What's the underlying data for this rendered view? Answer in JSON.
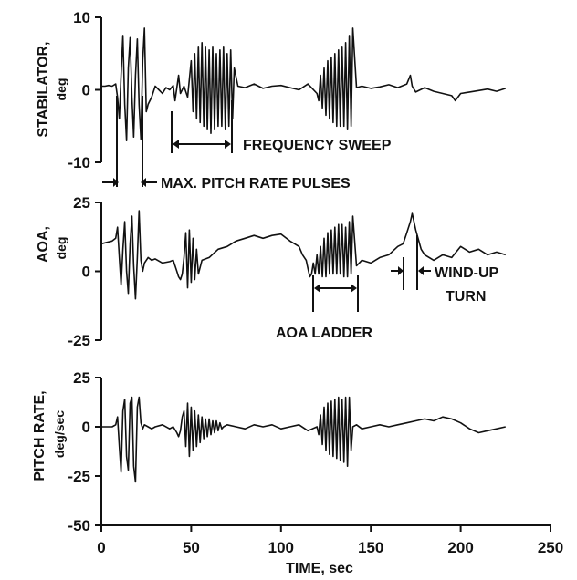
{
  "chart_data": {
    "type": "line",
    "xlabel": "TIME, sec",
    "xlim": [
      0,
      250
    ],
    "xticks": [
      "0",
      "50",
      "100",
      "150",
      "200",
      "250"
    ],
    "panels": [
      {
        "ylabel_line1": "STABILATOR,",
        "ylabel_line2": "deg",
        "ylim": [
          -10,
          10
        ],
        "yticks": [
          "10",
          "0",
          "-10"
        ],
        "series": [
          {
            "x": [
              0,
              2,
              4,
              6,
              8,
              9,
              10,
              11,
              12,
              13,
              14,
              15,
              16,
              17,
              18,
              19,
              20,
              21,
              22,
              23,
              24,
              25,
              26,
              28,
              30,
              32,
              34,
              36,
              38,
              40,
              41,
              42,
              43,
              44,
              46,
              48,
              50,
              51,
              52,
              53,
              54,
              55,
              56,
              57,
              58,
              59,
              60,
              61,
              62,
              63,
              64,
              65,
              66,
              67,
              68,
              69,
              70,
              71,
              72,
              73,
              74,
              76,
              80,
              85,
              90,
              95,
              100,
              105,
              110,
              115,
              120,
              121,
              122,
              123,
              124,
              125,
              126,
              127,
              128,
              129,
              130,
              131,
              132,
              133,
              134,
              135,
              136,
              137,
              138,
              139,
              140,
              142,
              145,
              150,
              155,
              160,
              165,
              170,
              172,
              173,
              175,
              180,
              185,
              190,
              195,
              197,
              200,
              205,
              210,
              215,
              220,
              225
            ],
            "y": [
              0.5,
              0.5,
              0.6,
              0.5,
              0.8,
              -1,
              -4,
              2,
              7.5,
              -2,
              -7,
              3,
              7.2,
              -1,
              -6.5,
              2,
              7,
              -2,
              -6.8,
              4,
              8.5,
              -3,
              -2,
              -1,
              0.5,
              0,
              -0.5,
              0.3,
              0,
              0.6,
              -1.5,
              0.3,
              2,
              -0.5,
              0.5,
              -1,
              4,
              -3,
              5,
              -4,
              6,
              -4.5,
              6.5,
              -5,
              6,
              -5.5,
              5.5,
              -6,
              6,
              -5.5,
              5,
              -5,
              5.5,
              -5,
              6,
              -5.5,
              5,
              -5,
              5.5,
              -4,
              3,
              0.5,
              0.3,
              0.8,
              0.2,
              0.5,
              0.6,
              0.3,
              0,
              0.8,
              -0.5,
              -1.5,
              2,
              -2.5,
              3,
              -3.5,
              4,
              -4,
              4.5,
              -4.5,
              5,
              -5,
              5.5,
              -5,
              6,
              -5,
              6.5,
              -5.5,
              7.5,
              -5,
              8.5,
              0.3,
              0.5,
              0.2,
              0.4,
              0.7,
              0.3,
              0.8,
              2,
              0.5,
              -0.3,
              0.3,
              -0.2,
              -0.5,
              -0.8,
              -1.5,
              -0.5,
              -0.3,
              -0.1,
              0.1,
              -0.2,
              0.2
            ]
          }
        ]
      },
      {
        "ylabel_line1": "AOA,",
        "ylabel_line2": "deg",
        "ylim": [
          -25,
          25
        ],
        "yticks": [
          "25",
          "0",
          "-25"
        ],
        "series": [
          {
            "x": [
              0,
              3,
              6,
              8,
              9,
              10,
              11,
              12,
              13,
              14,
              15,
              16,
              17,
              18,
              19,
              20,
              21,
              22,
              23,
              24,
              26,
              28,
              30,
              34,
              38,
              40,
              42,
              43,
              44,
              45,
              46,
              47,
              48,
              49,
              50,
              51,
              52,
              53,
              54,
              56,
              58,
              60,
              65,
              70,
              75,
              80,
              85,
              90,
              95,
              100,
              105,
              110,
              112,
              114,
              115,
              116,
              117,
              118,
              119,
              120,
              121,
              122,
              123,
              124,
              125,
              126,
              127,
              128,
              129,
              130,
              131,
              132,
              133,
              134,
              135,
              136,
              137,
              138,
              139,
              140,
              142,
              145,
              150,
              155,
              160,
              165,
              168,
              170,
              172,
              173,
              175,
              178,
              180,
              185,
              190,
              195,
              200,
              205,
              210,
              215,
              220,
              225
            ],
            "y": [
              10,
              10.5,
              11,
              12,
              16,
              5,
              -5,
              8,
              18,
              0,
              -8,
              10,
              20,
              2,
              -10,
              5,
              22,
              4,
              0,
              3,
              5,
              4,
              4.5,
              3,
              3.5,
              4,
              0,
              -2,
              -3,
              -1,
              5,
              14,
              -6,
              15,
              -4,
              12,
              -3,
              8,
              -1,
              4,
              4.5,
              5,
              8,
              9,
              11,
              12,
              13,
              12,
              13,
              13.5,
              11,
              9,
              6,
              4,
              1,
              -2,
              -1,
              3,
              -1,
              6,
              -1,
              9,
              -2,
              12,
              -2,
              14,
              -1,
              15,
              -1,
              16,
              -1,
              17,
              -1,
              17,
              -2,
              16,
              -2,
              18,
              -1,
              20,
              2,
              4,
              3,
              5,
              6,
              9,
              10,
              14,
              18,
              21,
              15,
              8,
              6,
              4,
              6,
              5,
              9,
              7,
              8,
              6,
              7,
              6
            ]
          }
        ]
      },
      {
        "ylabel_line1": "PITCH RATE,",
        "ylabel_line2": "deg/sec",
        "ylim": [
          -50,
          25
        ],
        "yticks": [
          "25",
          "0",
          "-25",
          "-50"
        ],
        "series": [
          {
            "x": [
              0,
              3,
              6,
              8,
              9,
              10,
              11,
              12,
              13,
              14,
              15,
              16,
              17,
              18,
              19,
              20,
              21,
              22,
              23,
              24,
              26,
              28,
              30,
              34,
              38,
              40,
              42,
              43,
              44,
              45,
              46,
              47,
              48,
              49,
              50,
              51,
              52,
              53,
              54,
              55,
              56,
              57,
              58,
              59,
              60,
              61,
              62,
              63,
              64,
              65,
              66,
              67,
              68,
              70,
              75,
              80,
              85,
              90,
              95,
              100,
              105,
              110,
              115,
              120,
              121,
              122,
              123,
              124,
              125,
              126,
              127,
              128,
              129,
              130,
              131,
              132,
              133,
              134,
              135,
              136,
              137,
              138,
              139,
              140,
              142,
              145,
              150,
              155,
              160,
              165,
              170,
              175,
              180,
              185,
              190,
              195,
              200,
              205,
              210,
              215,
              220,
              225
            ],
            "y": [
              0,
              0,
              0,
              1,
              5,
              -10,
              -23,
              8,
              14,
              -15,
              -22,
              12,
              15,
              -20,
              -28,
              10,
              15,
              2,
              -1,
              1,
              0,
              -1,
              0,
              1,
              -1,
              0,
              -3,
              -5,
              -2,
              5,
              8,
              -10,
              12,
              -15,
              10,
              -12,
              8,
              -10,
              6,
              -8,
              5,
              -6,
              4,
              -5,
              4,
              -4,
              3,
              -3,
              3,
              -2,
              2,
              -1,
              0,
              1,
              0,
              -1,
              1,
              0,
              1,
              -1,
              0,
              1,
              -2,
              0,
              -4,
              6,
              -9,
              10,
              -12,
              12,
              -14,
              13,
              -15,
              14,
              -16,
              15,
              -17,
              14,
              -18,
              15,
              -20,
              15,
              -12,
              0,
              1,
              -1,
              0,
              1,
              0,
              1,
              2,
              3,
              4,
              3,
              5,
              4,
              2,
              -1,
              -3,
              -2,
              -1,
              0
            ]
          }
        ]
      }
    ],
    "annotations": {
      "frequency_sweep": "FREQUENCY SWEEP",
      "max_pitch_rate_pulses": "MAX. PITCH RATE PULSES",
      "aoa_ladder": "AOA LADDER",
      "wind_up_turn_line1": "WIND-UP",
      "wind_up_turn_line2": "TURN"
    }
  }
}
